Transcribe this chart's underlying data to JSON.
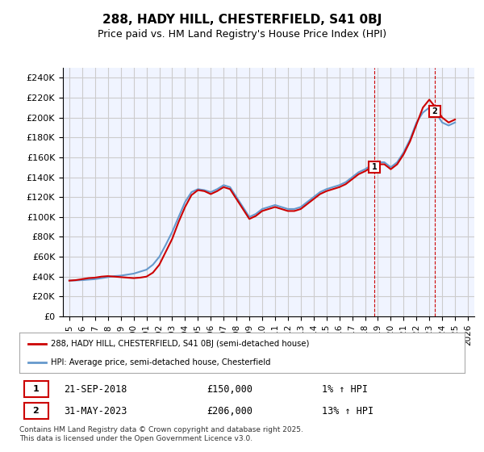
{
  "title": "288, HADY HILL, CHESTERFIELD, S41 0BJ",
  "subtitle": "Price paid vs. HM Land Registry's House Price Index (HPI)",
  "ylabel": "",
  "xlabel": "",
  "background_color": "#ffffff",
  "grid_color": "#cccccc",
  "plot_bg_color": "#f0f4ff",
  "ylim": [
    0,
    250000
  ],
  "yticks": [
    0,
    20000,
    40000,
    60000,
    80000,
    100000,
    120000,
    140000,
    160000,
    180000,
    200000,
    220000,
    240000
  ],
  "ytick_labels": [
    "£0",
    "£20K",
    "£40K",
    "£60K",
    "£80K",
    "£100K",
    "£120K",
    "£140K",
    "£160K",
    "£180K",
    "£200K",
    "£220K",
    "£240K"
  ],
  "hpi_color": "#6699cc",
  "price_color": "#cc0000",
  "marker_color_1": "#cc0000",
  "marker_color_2": "#cc0000",
  "annotation_box_color": "#cc0000",
  "sale1_date": "21-SEP-2018",
  "sale1_price": 150000,
  "sale1_pct": "1%",
  "sale1_year": 2018.73,
  "sale2_date": "31-MAY-2023",
  "sale2_price": 206000,
  "sale2_pct": "13%",
  "sale2_year": 2023.42,
  "legend_line1": "288, HADY HILL, CHESTERFIELD, S41 0BJ (semi-detached house)",
  "legend_line2": "HPI: Average price, semi-detached house, Chesterfield",
  "footer": "Contains HM Land Registry data © Crown copyright and database right 2025.\nThis data is licensed under the Open Government Licence v3.0.",
  "hpi_years": [
    1995.0,
    1995.5,
    1996.0,
    1996.5,
    1997.0,
    1997.5,
    1998.0,
    1998.5,
    1999.0,
    1999.5,
    2000.0,
    2000.5,
    2001.0,
    2001.5,
    2002.0,
    2002.5,
    2003.0,
    2003.5,
    2004.0,
    2004.5,
    2005.0,
    2005.5,
    2006.0,
    2006.5,
    2007.0,
    2007.5,
    2008.0,
    2008.5,
    2009.0,
    2009.5,
    2010.0,
    2010.5,
    2011.0,
    2011.5,
    2012.0,
    2012.5,
    2013.0,
    2013.5,
    2014.0,
    2014.5,
    2015.0,
    2015.5,
    2016.0,
    2016.5,
    2017.0,
    2017.5,
    2018.0,
    2018.5,
    2019.0,
    2019.5,
    2020.0,
    2020.5,
    2021.0,
    2021.5,
    2022.0,
    2022.5,
    2023.0,
    2023.5,
    2024.0,
    2024.5,
    2025.0
  ],
  "hpi_values": [
    36000,
    36200,
    36500,
    37000,
    37500,
    38500,
    39500,
    40500,
    41000,
    42000,
    43000,
    45000,
    47000,
    52000,
    60000,
    72000,
    85000,
    100000,
    115000,
    125000,
    128000,
    127000,
    125000,
    128000,
    132000,
    130000,
    120000,
    110000,
    100000,
    103000,
    108000,
    110000,
    112000,
    110000,
    108000,
    108000,
    110000,
    115000,
    120000,
    125000,
    128000,
    130000,
    132000,
    135000,
    140000,
    145000,
    148000,
    152000,
    155000,
    155000,
    150000,
    155000,
    165000,
    178000,
    195000,
    205000,
    210000,
    205000,
    195000,
    192000,
    195000
  ],
  "price_years": [
    1995.0,
    1995.5,
    1996.0,
    1996.5,
    1997.0,
    1997.5,
    1998.0,
    1998.5,
    1999.0,
    1999.5,
    2000.0,
    2000.5,
    2001.0,
    2001.5,
    2002.0,
    2002.5,
    2003.0,
    2003.5,
    2004.0,
    2004.5,
    2005.0,
    2005.5,
    2006.0,
    2006.5,
    2007.0,
    2007.5,
    2008.0,
    2008.5,
    2009.0,
    2009.5,
    2010.0,
    2010.5,
    2011.0,
    2011.5,
    2012.0,
    2012.5,
    2013.0,
    2013.5,
    2014.0,
    2014.5,
    2015.0,
    2015.5,
    2016.0,
    2016.5,
    2017.0,
    2017.5,
    2018.0,
    2018.5,
    2019.0,
    2019.5,
    2020.0,
    2020.5,
    2021.0,
    2021.5,
    2022.0,
    2022.5,
    2023.0,
    2023.5,
    2024.0,
    2024.5,
    2025.0
  ],
  "price_values": [
    36000,
    36500,
    37500,
    38500,
    39000,
    40000,
    40500,
    40000,
    39500,
    39000,
    38500,
    39000,
    40000,
    44000,
    52000,
    65000,
    78000,
    95000,
    110000,
    122000,
    127000,
    126000,
    123000,
    126000,
    130000,
    128000,
    118000,
    108000,
    98000,
    101000,
    106000,
    108000,
    110000,
    108000,
    106000,
    106000,
    108000,
    113000,
    118000,
    123000,
    126000,
    128000,
    130000,
    133000,
    138000,
    143000,
    146000,
    150000,
    153000,
    153000,
    148000,
    153000,
    163000,
    176000,
    193000,
    210000,
    218000,
    210000,
    200000,
    195000,
    198000
  ],
  "xlim": [
    1994.5,
    2026.5
  ],
  "xticks": [
    1995,
    1996,
    1997,
    1998,
    1999,
    2000,
    2001,
    2002,
    2003,
    2004,
    2005,
    2006,
    2007,
    2008,
    2009,
    2010,
    2011,
    2012,
    2013,
    2014,
    2015,
    2016,
    2017,
    2018,
    2019,
    2020,
    2021,
    2022,
    2023,
    2024,
    2025,
    2026
  ]
}
